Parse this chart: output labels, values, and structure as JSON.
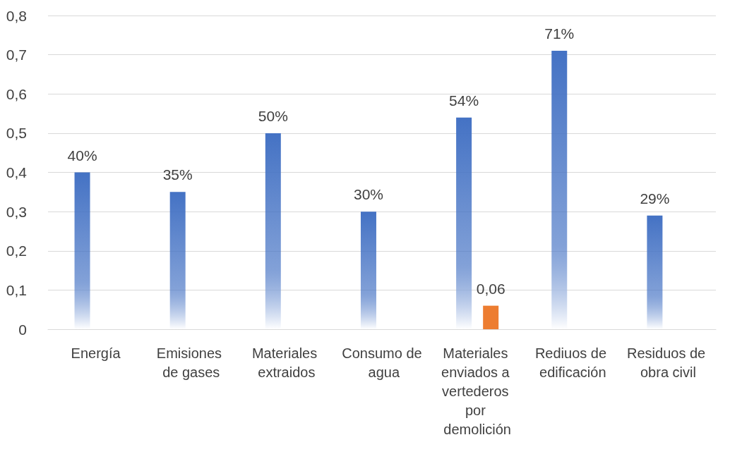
{
  "chart_data": {
    "type": "bar",
    "categories": [
      "Energía",
      "Emisiones de gases",
      "Materiales extraidos",
      "Consumo de agua",
      "Materiales enviados a vertederos por demolición",
      "Rediuos de edificación",
      "Residuos de obra civil"
    ],
    "series": [
      {
        "color": "#4472c4",
        "values": [
          0.4,
          0.35,
          0.5,
          0.3,
          0.54,
          0.71,
          0.29
        ],
        "value_labels": [
          "40%",
          "35%",
          "50%",
          "30%",
          "54%",
          "71%",
          "29%"
        ]
      },
      {
        "color": "#ed7d31",
        "values": [
          null,
          null,
          null,
          null,
          0.06,
          null,
          null
        ],
        "value_labels": [
          null,
          null,
          null,
          null,
          "0,06",
          null,
          null
        ]
      }
    ],
    "ylim": [
      0,
      0.8
    ],
    "yticks": [
      0,
      {
        "value": 0.1,
        "label": "0,1"
      },
      {
        "value": 0.2,
        "label": "0,2"
      },
      {
        "value": 0.3,
        "label": "0,3"
      },
      {
        "value": 0.4,
        "label": "0,4"
      },
      {
        "value": 0.5,
        "label": "0,5"
      },
      {
        "value": 0.6,
        "label": "0,6"
      },
      {
        "value": 0.7,
        "label": "0,7"
      },
      {
        "value": 0.8,
        "label": "0,8"
      }
    ],
    "grid": "y"
  }
}
